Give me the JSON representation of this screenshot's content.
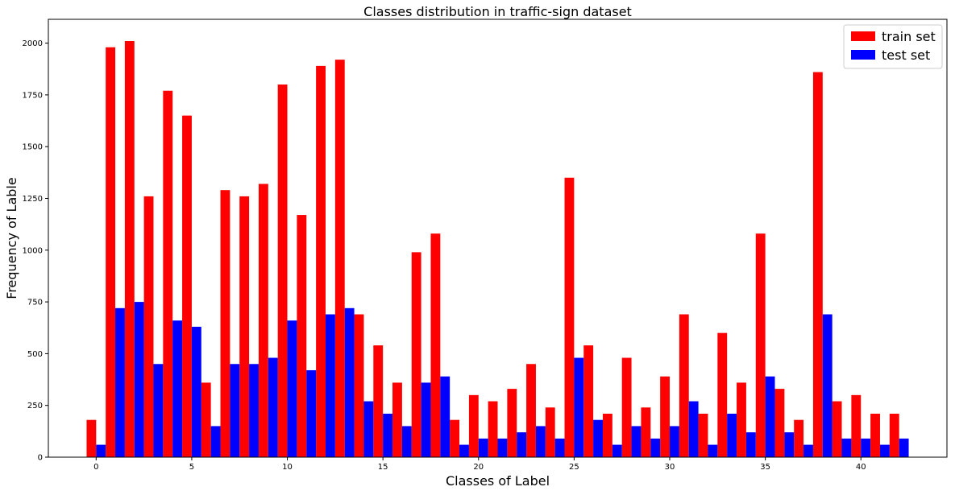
{
  "chart_data": {
    "type": "bar",
    "title": "Classes distribution in traffic-sign dataset",
    "xlabel": "Classes of Label",
    "ylabel": "Frequency of Lable",
    "xlim": [
      -2.5,
      44.5
    ],
    "ylim": [
      0,
      2115
    ],
    "xticks": [
      0,
      5,
      10,
      15,
      20,
      25,
      30,
      35,
      40
    ],
    "yticks": [
      0,
      250,
      500,
      750,
      1000,
      1250,
      1500,
      1750,
      2000
    ],
    "grid": false,
    "legend_position": "top-right",
    "categories": [
      0,
      1,
      2,
      3,
      4,
      5,
      6,
      7,
      8,
      9,
      10,
      11,
      12,
      13,
      14,
      15,
      16,
      17,
      18,
      19,
      20,
      21,
      22,
      23,
      24,
      25,
      26,
      27,
      28,
      29,
      30,
      31,
      32,
      33,
      34,
      35,
      36,
      37,
      38,
      39,
      40,
      41,
      42
    ],
    "series": [
      {
        "name": "train set",
        "color": "#ff0000",
        "values": [
          180,
          1980,
          2010,
          1260,
          1770,
          1650,
          360,
          1290,
          1260,
          1320,
          1800,
          1170,
          1890,
          1920,
          690,
          540,
          360,
          990,
          1080,
          180,
          300,
          270,
          330,
          450,
          240,
          1350,
          540,
          210,
          480,
          240,
          390,
          690,
          210,
          600,
          360,
          1080,
          330,
          180,
          1860,
          270,
          300,
          210,
          210
        ]
      },
      {
        "name": "test set",
        "color": "#0000ff",
        "values": [
          60,
          720,
          750,
          450,
          660,
          630,
          150,
          450,
          450,
          480,
          660,
          420,
          690,
          720,
          270,
          210,
          150,
          360,
          390,
          60,
          90,
          90,
          120,
          150,
          90,
          480,
          180,
          60,
          150,
          90,
          150,
          270,
          60,
          210,
          120,
          390,
          120,
          60,
          690,
          90,
          90,
          60,
          90
        ]
      }
    ]
  }
}
